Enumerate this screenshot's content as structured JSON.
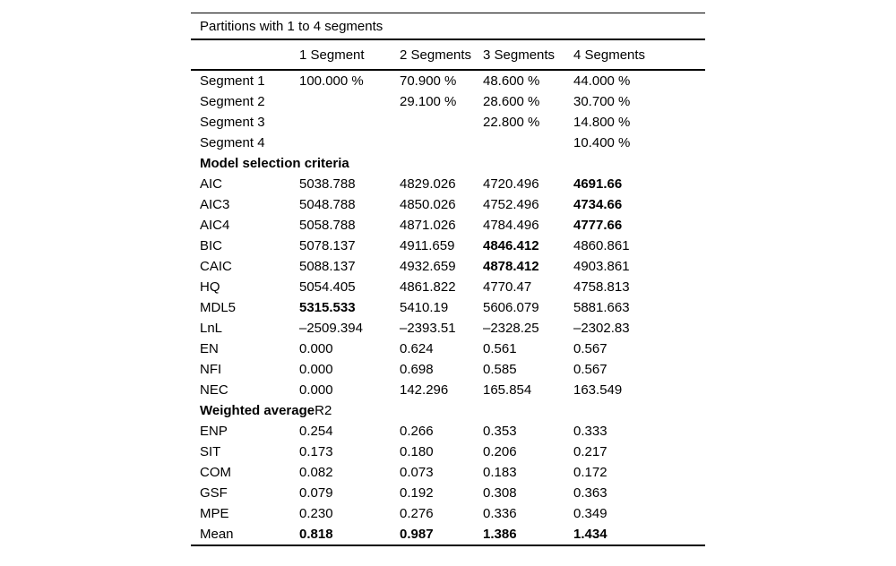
{
  "table": {
    "title": "Partitions with 1 to 4 segments",
    "columns": [
      "",
      "1 Segment",
      "2 Segments",
      "3 Segments",
      "4 Segments"
    ],
    "rows": [
      {
        "label": "Segment 1",
        "values": [
          "100.000 %",
          "70.900 %",
          "48.600 %",
          "44.000 %"
        ],
        "bold": [
          false,
          false,
          false,
          false
        ]
      },
      {
        "label": "Segment 2",
        "values": [
          "",
          "29.100 %",
          "28.600 %",
          "30.700 %"
        ],
        "bold": [
          false,
          false,
          false,
          false
        ]
      },
      {
        "label": "Segment 3",
        "values": [
          "",
          "",
          "22.800 %",
          "14.800 %"
        ],
        "bold": [
          false,
          false,
          false,
          false
        ]
      },
      {
        "label": "Segment 4",
        "values": [
          "",
          "",
          "",
          "10.400 %"
        ],
        "bold": [
          false,
          false,
          false,
          false
        ]
      },
      {
        "label": "Model selection criteria",
        "section": true,
        "label_suffix": "",
        "values": [
          "",
          "",
          "",
          ""
        ],
        "bold": [
          false,
          false,
          false,
          false
        ]
      },
      {
        "label": "AIC",
        "values": [
          "5038.788",
          "4829.026",
          "4720.496",
          "4691.66"
        ],
        "bold": [
          false,
          false,
          false,
          true
        ]
      },
      {
        "label": "AIC3",
        "values": [
          "5048.788",
          "4850.026",
          "4752.496",
          "4734.66"
        ],
        "bold": [
          false,
          false,
          false,
          true
        ]
      },
      {
        "label": "AIC4",
        "values": [
          "5058.788",
          "4871.026",
          "4784.496",
          "4777.66"
        ],
        "bold": [
          false,
          false,
          false,
          true
        ]
      },
      {
        "label": "BIC",
        "values": [
          "5078.137",
          "4911.659",
          "4846.412",
          "4860.861"
        ],
        "bold": [
          false,
          false,
          true,
          false
        ]
      },
      {
        "label": "CAIC",
        "values": [
          "5088.137",
          "4932.659",
          "4878.412",
          "4903.861"
        ],
        "bold": [
          false,
          false,
          true,
          false
        ]
      },
      {
        "label": "HQ",
        "values": [
          "5054.405",
          "4861.822",
          "4770.47",
          "4758.813"
        ],
        "bold": [
          false,
          false,
          false,
          false
        ]
      },
      {
        "label": "MDL5",
        "values": [
          "5315.533",
          "5410.19",
          "5606.079",
          "5881.663"
        ],
        "bold": [
          true,
          false,
          false,
          false
        ]
      },
      {
        "label": "LnL",
        "values": [
          "–2509.394",
          "–2393.51",
          "–2328.25",
          "–2302.83"
        ],
        "bold": [
          false,
          false,
          false,
          false
        ]
      },
      {
        "label": "EN",
        "values": [
          "0.000",
          "0.624",
          "0.561",
          "0.567"
        ],
        "bold": [
          false,
          false,
          false,
          false
        ]
      },
      {
        "label": "NFI",
        "values": [
          "0.000",
          "0.698",
          "0.585",
          "0.567"
        ],
        "bold": [
          false,
          false,
          false,
          false
        ]
      },
      {
        "label": "NEC",
        "values": [
          "0.000",
          "142.296",
          "165.854",
          "163.549"
        ],
        "bold": [
          false,
          false,
          false,
          false
        ]
      },
      {
        "label": "Weighted average",
        "section": true,
        "label_suffix": "R2",
        "values": [
          "",
          "",
          "",
          ""
        ],
        "bold": [
          false,
          false,
          false,
          false
        ]
      },
      {
        "label": "ENP",
        "values": [
          "0.254",
          "0.266",
          "0.353",
          "0.333"
        ],
        "bold": [
          false,
          false,
          false,
          false
        ]
      },
      {
        "label": "SIT",
        "values": [
          "0.173",
          "0.180",
          "0.206",
          "0.217"
        ],
        "bold": [
          false,
          false,
          false,
          false
        ]
      },
      {
        "label": "COM",
        "values": [
          "0.082",
          "0.073",
          "0.183",
          "0.172"
        ],
        "bold": [
          false,
          false,
          false,
          false
        ]
      },
      {
        "label": "GSF",
        "values": [
          "0.079",
          "0.192",
          "0.308",
          "0.363"
        ],
        "bold": [
          false,
          false,
          false,
          false
        ]
      },
      {
        "label": "MPE",
        "values": [
          "0.230",
          "0.276",
          "0.336",
          "0.349"
        ],
        "bold": [
          false,
          false,
          false,
          false
        ]
      },
      {
        "label": "Mean",
        "values": [
          "0.818",
          "0.987",
          "1.386",
          "1.434"
        ],
        "bold": [
          true,
          true,
          true,
          true
        ]
      }
    ]
  }
}
